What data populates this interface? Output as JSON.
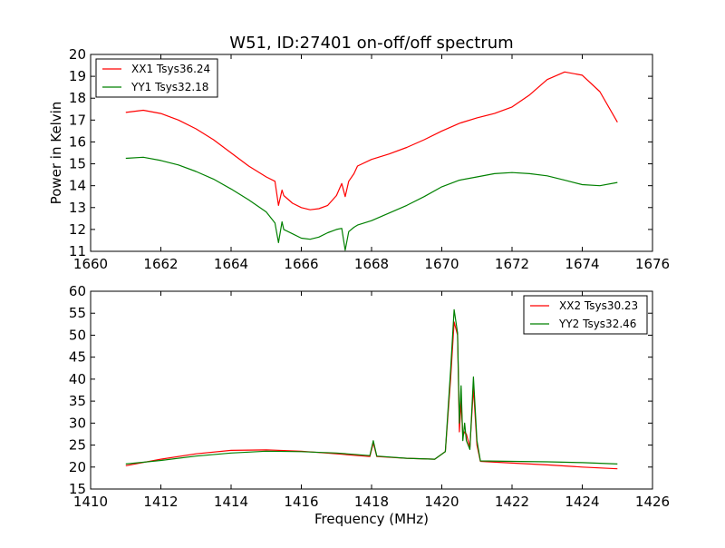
{
  "figure": {
    "title": "W51, ID:27401 on-off/off spectrum"
  },
  "chart_data": [
    {
      "type": "line",
      "title": "W51, ID:27401 on-off/off spectrum",
      "xlabel": "",
      "ylabel": "Power in Kelvin",
      "xlim": [
        1660,
        1676
      ],
      "ylim": [
        11,
        20
      ],
      "xticks": [
        1660,
        1662,
        1664,
        1666,
        1668,
        1670,
        1672,
        1674,
        1676
      ],
      "yticks": [
        11,
        12,
        13,
        14,
        15,
        16,
        17,
        18,
        19,
        20
      ],
      "legend_position": "upper-left",
      "grid": false,
      "series": [
        {
          "name": "XX1 Tsys36.24",
          "color": "#ff0000",
          "x": [
            1661.0,
            1661.5,
            1662.0,
            1662.5,
            1663.0,
            1663.5,
            1664.0,
            1664.5,
            1665.0,
            1665.25,
            1665.35,
            1665.45,
            1665.5,
            1665.75,
            1666.0,
            1666.25,
            1666.5,
            1666.75,
            1667.0,
            1667.15,
            1667.25,
            1667.35,
            1667.5,
            1667.6,
            1668.0,
            1668.5,
            1669.0,
            1669.5,
            1670.0,
            1670.5,
            1671.0,
            1671.5,
            1672.0,
            1672.5,
            1673.0,
            1673.5,
            1674.0,
            1674.5,
            1675.0
          ],
          "y": [
            17.35,
            17.45,
            17.3,
            17.0,
            16.6,
            16.1,
            15.5,
            14.9,
            14.4,
            14.2,
            13.1,
            13.8,
            13.55,
            13.2,
            13.0,
            12.9,
            12.95,
            13.1,
            13.55,
            14.1,
            13.5,
            14.2,
            14.55,
            14.9,
            15.2,
            15.45,
            15.75,
            16.1,
            16.5,
            16.85,
            17.1,
            17.3,
            17.6,
            18.15,
            18.85,
            19.2,
            19.05,
            18.3,
            16.9
          ]
        },
        {
          "name": "YY1 Tsys32.18",
          "color": "#008000",
          "x": [
            1661.0,
            1661.5,
            1662.0,
            1662.5,
            1663.0,
            1663.5,
            1664.0,
            1664.5,
            1665.0,
            1665.25,
            1665.35,
            1665.45,
            1665.5,
            1665.75,
            1666.0,
            1666.25,
            1666.5,
            1666.75,
            1667.0,
            1667.15,
            1667.25,
            1667.35,
            1667.5,
            1667.6,
            1668.0,
            1668.5,
            1669.0,
            1669.5,
            1670.0,
            1670.5,
            1671.0,
            1671.5,
            1672.0,
            1672.5,
            1673.0,
            1673.5,
            1674.0,
            1674.5,
            1675.0
          ],
          "y": [
            15.25,
            15.3,
            15.15,
            14.95,
            14.65,
            14.3,
            13.85,
            13.35,
            12.8,
            12.3,
            11.4,
            12.35,
            12.0,
            11.8,
            11.6,
            11.55,
            11.65,
            11.85,
            12.0,
            12.05,
            11.05,
            11.9,
            12.1,
            12.2,
            12.4,
            12.75,
            13.1,
            13.5,
            13.95,
            14.25,
            14.4,
            14.55,
            14.6,
            14.55,
            14.45,
            14.25,
            14.05,
            14.0,
            14.15
          ]
        }
      ]
    },
    {
      "type": "line",
      "title": "",
      "xlabel": "Frequency (MHz)",
      "ylabel": "",
      "xlim": [
        1410,
        1426
      ],
      "ylim": [
        15,
        60
      ],
      "xticks": [
        1410,
        1412,
        1414,
        1416,
        1418,
        1420,
        1422,
        1424,
        1426
      ],
      "yticks": [
        15,
        20,
        25,
        30,
        35,
        40,
        45,
        50,
        55,
        60
      ],
      "legend_position": "upper-right",
      "grid": false,
      "series": [
        {
          "name": "XX2 Tsys30.23",
          "color": "#ff0000",
          "x": [
            1411.0,
            1412.0,
            1413.0,
            1414.0,
            1415.0,
            1416.0,
            1417.0,
            1417.95,
            1418.05,
            1418.15,
            1419.0,
            1419.8,
            1420.1,
            1420.25,
            1420.35,
            1420.45,
            1420.5,
            1420.55,
            1420.6,
            1420.65,
            1420.7,
            1420.8,
            1420.9,
            1421.0,
            1421.1,
            1422.0,
            1423.0,
            1424.0,
            1425.0
          ],
          "y": [
            20.3,
            21.8,
            23.0,
            23.8,
            23.9,
            23.6,
            23.0,
            22.4,
            25.5,
            22.4,
            22.0,
            21.8,
            23.5,
            40.0,
            53.0,
            50.0,
            28.0,
            35.0,
            27.0,
            28.0,
            27.5,
            24.5,
            38.0,
            25.0,
            21.3,
            20.9,
            20.5,
            20.0,
            19.6
          ]
        },
        {
          "name": "YY2 Tsys32.46",
          "color": "#008000",
          "x": [
            1411.0,
            1412.0,
            1413.0,
            1414.0,
            1415.0,
            1416.0,
            1417.0,
            1417.95,
            1418.05,
            1418.15,
            1419.0,
            1419.8,
            1420.1,
            1420.25,
            1420.35,
            1420.45,
            1420.5,
            1420.55,
            1420.6,
            1420.65,
            1420.7,
            1420.8,
            1420.9,
            1421.0,
            1421.1,
            1422.0,
            1423.0,
            1424.0,
            1425.0
          ],
          "y": [
            20.7,
            21.5,
            22.5,
            23.2,
            23.6,
            23.5,
            23.2,
            22.6,
            26.0,
            22.5,
            22.0,
            21.8,
            23.5,
            42.0,
            55.8,
            50.5,
            30.0,
            38.5,
            26.0,
            30.0,
            26.0,
            24.0,
            40.5,
            26.0,
            21.4,
            21.3,
            21.2,
            21.0,
            20.7
          ]
        }
      ]
    }
  ]
}
